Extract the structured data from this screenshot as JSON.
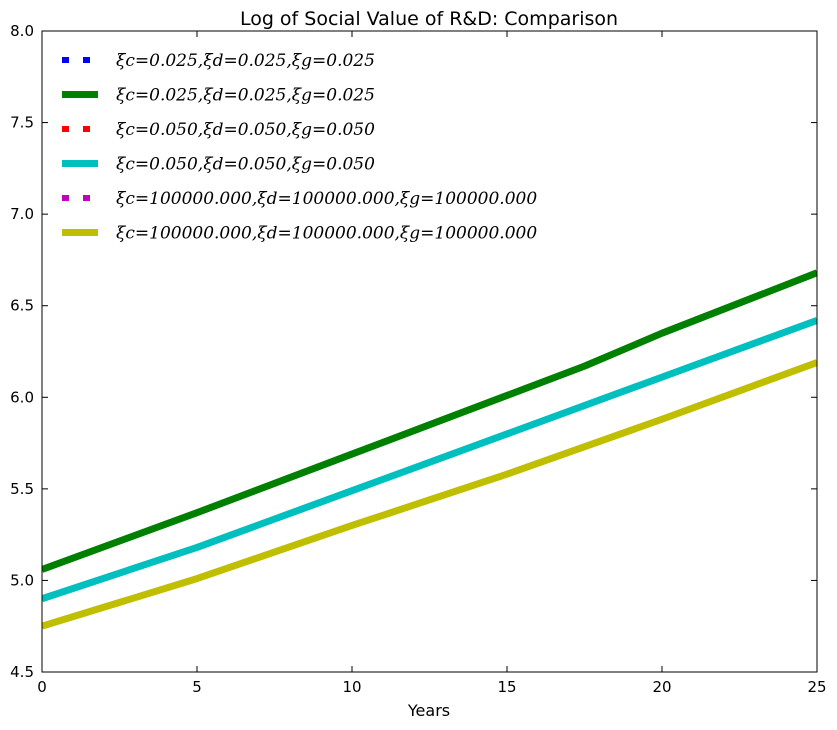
{
  "chart_data": {
    "type": "line",
    "title": "Log of Social Value of R&D: Comparison",
    "xlabel": "Years",
    "ylabel": "",
    "xlim": [
      0,
      25
    ],
    "ylim": [
      4.5,
      8.0
    ],
    "xticks": [
      "0",
      "5",
      "10",
      "15",
      "20",
      "25"
    ],
    "yticks": [
      "4.5",
      "5.0",
      "5.5",
      "6.0",
      "6.5",
      "7.0",
      "7.5",
      "8.0"
    ],
    "grid": false,
    "legend_position": "upper-left",
    "series": [
      {
        "name": "ξc=0.025,ξd=0.025,ξg=0.025",
        "color": "#0000ff",
        "style": "dotted",
        "x": [
          0,
          5,
          10,
          15,
          17.5,
          20,
          25
        ],
        "y": [
          5.06,
          5.37,
          5.69,
          6.01,
          6.17,
          6.35,
          6.68
        ]
      },
      {
        "name": "ξc=0.025,ξd=0.025,ξg=0.025",
        "color": "#008000",
        "style": "solid",
        "x": [
          0,
          5,
          10,
          15,
          17.5,
          20,
          25
        ],
        "y": [
          5.06,
          5.37,
          5.69,
          6.01,
          6.17,
          6.35,
          6.68
        ]
      },
      {
        "name": "ξc=0.050,ξd=0.050,ξg=0.050",
        "color": "#ff0000",
        "style": "dotted",
        "x": [
          0,
          5,
          10,
          15,
          20,
          25
        ],
        "y": [
          4.9,
          5.18,
          5.49,
          5.8,
          6.11,
          6.42
        ]
      },
      {
        "name": "ξc=0.050,ξd=0.050,ξg=0.050",
        "color": "#00bfbf",
        "style": "solid",
        "x": [
          0,
          5,
          10,
          15,
          20,
          25
        ],
        "y": [
          4.9,
          5.18,
          5.49,
          5.8,
          6.11,
          6.42
        ]
      },
      {
        "name": "ξc=100000.000,ξd=100000.000,ξg=100000.000",
        "color": "#bf00bf",
        "style": "dotted",
        "x": [
          0,
          5,
          10,
          15,
          20,
          25
        ],
        "y": [
          4.75,
          5.01,
          5.3,
          5.58,
          5.88,
          6.19
        ]
      },
      {
        "name": "ξc=100000.000,ξd=100000.000,ξg=100000.000",
        "color": "#bfbf00",
        "style": "solid",
        "x": [
          0,
          5,
          10,
          15,
          20,
          25
        ],
        "y": [
          4.75,
          5.01,
          5.3,
          5.58,
          5.88,
          6.19
        ]
      }
    ]
  }
}
